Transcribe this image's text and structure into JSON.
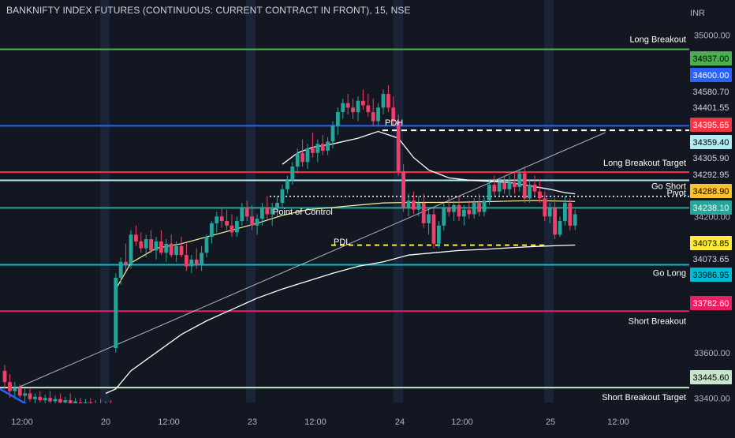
{
  "header": {
    "title": "BANKNIFTY INDEX FUTURES (CONTINUOUS: CURRENT CONTRACT IN FRONT), 15, NSE",
    "currency": "INR"
  },
  "chart_data": {
    "type": "candlestick",
    "symbol": "BANKNIFTY INDEX FUTURES (CONTINUOUS: CURRENT CONTRACT IN FRONT)",
    "interval": "15",
    "exchange": "NSE",
    "ylim": [
      33380,
      35050
    ],
    "y_ticks": [
      35000.0,
      34200.0,
      33600.0,
      33400.0
    ],
    "x_ticks": [
      "12:00",
      "20",
      "12:00",
      "23",
      "12:00",
      "24",
      "12:00",
      "25",
      "12:00"
    ],
    "levels": [
      {
        "name": "Long Breakout",
        "value": 34937.0,
        "color": "#4caf50",
        "style": "solid"
      },
      {
        "name": "",
        "value": 34600.0,
        "color": "#2962ff",
        "style": "solid"
      },
      {
        "name": "",
        "value": 34580.7,
        "color": "#ffffff",
        "style": "plain"
      },
      {
        "name": "",
        "value": 34401.55,
        "color": "#ffffff",
        "style": "plain"
      },
      {
        "name": "Long Breakout Target",
        "value": 34395.65,
        "color": "#f23645",
        "style": "solid"
      },
      {
        "name": "",
        "value": 34359.4,
        "color": "#b2ebf2",
        "style": "solid"
      },
      {
        "name": "",
        "value": 34305.9,
        "color": "#ffffff",
        "style": "plain"
      },
      {
        "name": "Go Short",
        "value": 34292.95,
        "color": "#ffffff",
        "style": "plain"
      },
      {
        "name": "Pivot",
        "value": 34288.9,
        "color": "#fbc02d",
        "style": "dotted"
      },
      {
        "name": "",
        "value": 34238.1,
        "color": "#26a69a",
        "style": "solid"
      },
      {
        "name": "",
        "value": 34073.85,
        "color": "#ffeb3b",
        "style": "dashed"
      },
      {
        "name": "",
        "value": 34073.65,
        "color": "#ffffff",
        "style": "plain"
      },
      {
        "name": "Go Long",
        "value": 33986.95,
        "color": "#00bcd4",
        "style": "solid"
      },
      {
        "name": "Short Breakout",
        "value": 33782.6,
        "color": "#e91e63",
        "style": "solid"
      },
      {
        "name": "Short Breakout Target",
        "value": 33445.6,
        "color": "#c8e6c9",
        "style": "solid"
      }
    ],
    "annotations": [
      {
        "text": "PDH",
        "value": 34580
      },
      {
        "text": "PDL",
        "value": 34055
      },
      {
        "text": "Point of Control",
        "value": 34250
      }
    ],
    "candles": [
      {
        "t": 0,
        "o": 33520,
        "h": 33545,
        "l": 33440,
        "c": 33470
      },
      {
        "t": 1,
        "o": 33470,
        "h": 33505,
        "l": 33400,
        "c": 33430
      },
      {
        "t": 2,
        "o": 33430,
        "h": 33470,
        "l": 33395,
        "c": 33445
      },
      {
        "t": 3,
        "o": 33445,
        "h": 33460,
        "l": 33400,
        "c": 33410
      },
      {
        "t": 4,
        "o": 33410,
        "h": 33440,
        "l": 33360,
        "c": 33420
      },
      {
        "t": 5,
        "o": 33420,
        "h": 33445,
        "l": 33385,
        "c": 33395
      },
      {
        "t": 6,
        "o": 33395,
        "h": 33420,
        "l": 33360,
        "c": 33405
      },
      {
        "t": 7,
        "o": 33405,
        "h": 33430,
        "l": 33380,
        "c": 33390
      },
      {
        "t": 8,
        "o": 33390,
        "h": 33415,
        "l": 33360,
        "c": 33400
      },
      {
        "t": 9,
        "o": 33400,
        "h": 33430,
        "l": 33370,
        "c": 33385
      },
      {
        "t": 10,
        "o": 33385,
        "h": 33410,
        "l": 33360,
        "c": 33395
      },
      {
        "t": 11,
        "o": 33395,
        "h": 33420,
        "l": 33370,
        "c": 33380
      },
      {
        "t": 12,
        "o": 33380,
        "h": 33405,
        "l": 33355,
        "c": 33390
      },
      {
        "t": 13,
        "o": 33390,
        "h": 33420,
        "l": 33365,
        "c": 33375
      },
      {
        "t": 14,
        "o": 33375,
        "h": 33400,
        "l": 33350,
        "c": 33385
      },
      {
        "t": 15,
        "o": 33380,
        "h": 33400,
        "l": 33355,
        "c": 33370
      },
      {
        "t": 16,
        "o": 33370,
        "h": 33395,
        "l": 33350,
        "c": 33380
      },
      {
        "t": 17,
        "o": 33380,
        "h": 33400,
        "l": 33355,
        "c": 33365
      },
      {
        "t": 18,
        "o": 33365,
        "h": 33390,
        "l": 33345,
        "c": 33375
      },
      {
        "t": 19,
        "o": 33375,
        "h": 33395,
        "l": 33350,
        "c": 33360
      },
      {
        "t": 20,
        "o": 33360,
        "h": 33385,
        "l": 33345,
        "c": 33370
      },
      {
        "t": 21,
        "o": 33370,
        "h": 33390,
        "l": 33350,
        "c": 33360
      },
      {
        "t": 22,
        "o": 33620,
        "h": 33950,
        "l": 33600,
        "c": 33930
      },
      {
        "t": 23,
        "o": 33930,
        "h": 34020,
        "l": 33900,
        "c": 34000
      },
      {
        "t": 24,
        "o": 34000,
        "h": 34080,
        "l": 33960,
        "c": 33990
      },
      {
        "t": 25,
        "o": 33990,
        "h": 34140,
        "l": 33970,
        "c": 34120
      },
      {
        "t": 26,
        "o": 34120,
        "h": 34160,
        "l": 34070,
        "c": 34090
      },
      {
        "t": 27,
        "o": 34090,
        "h": 34130,
        "l": 34040,
        "c": 34060
      },
      {
        "t": 28,
        "o": 34060,
        "h": 34120,
        "l": 34020,
        "c": 34100
      },
      {
        "t": 29,
        "o": 34100,
        "h": 34140,
        "l": 34040,
        "c": 34050
      },
      {
        "t": 30,
        "o": 34050,
        "h": 34110,
        "l": 34010,
        "c": 34090
      },
      {
        "t": 31,
        "o": 34090,
        "h": 34140,
        "l": 34030,
        "c": 34040
      },
      {
        "t": 32,
        "o": 34040,
        "h": 34100,
        "l": 34000,
        "c": 34080
      },
      {
        "t": 33,
        "o": 34080,
        "h": 34120,
        "l": 34020,
        "c": 34030
      },
      {
        "t": 34,
        "o": 34030,
        "h": 34090,
        "l": 34000,
        "c": 34070
      },
      {
        "t": 35,
        "o": 34070,
        "h": 34110,
        "l": 34020,
        "c": 34030
      },
      {
        "t": 36,
        "o": 34030,
        "h": 34080,
        "l": 33960,
        "c": 33980
      },
      {
        "t": 37,
        "o": 33980,
        "h": 34030,
        "l": 33950,
        "c": 34010
      },
      {
        "t": 38,
        "o": 34010,
        "h": 34060,
        "l": 33970,
        "c": 33990
      },
      {
        "t": 39,
        "o": 33990,
        "h": 34070,
        "l": 33960,
        "c": 34040
      },
      {
        "t": 40,
        "o": 34040,
        "h": 34120,
        "l": 34020,
        "c": 34110
      },
      {
        "t": 41,
        "o": 34110,
        "h": 34180,
        "l": 34080,
        "c": 34170
      },
      {
        "t": 42,
        "o": 34170,
        "h": 34220,
        "l": 34130,
        "c": 34200
      },
      {
        "t": 43,
        "o": 34200,
        "h": 34240,
        "l": 34150,
        "c": 34180
      },
      {
        "t": 44,
        "o": 34180,
        "h": 34230,
        "l": 34140,
        "c": 34160
      },
      {
        "t": 45,
        "o": 34160,
        "h": 34210,
        "l": 34110,
        "c": 34130
      },
      {
        "t": 46,
        "o": 34130,
        "h": 34200,
        "l": 34110,
        "c": 34180
      },
      {
        "t": 47,
        "o": 34180,
        "h": 34260,
        "l": 34160,
        "c": 34240
      },
      {
        "t": 48,
        "o": 34240,
        "h": 34270,
        "l": 34180,
        "c": 34200
      },
      {
        "t": 49,
        "o": 34200,
        "h": 34250,
        "l": 34140,
        "c": 34160
      },
      {
        "t": 50,
        "o": 34160,
        "h": 34210,
        "l": 34120,
        "c": 34190
      },
      {
        "t": 51,
        "o": 34190,
        "h": 34260,
        "l": 34160,
        "c": 34240
      },
      {
        "t": 52,
        "o": 34240,
        "h": 34290,
        "l": 34190,
        "c": 34210
      },
      {
        "t": 53,
        "o": 34210,
        "h": 34260,
        "l": 34160,
        "c": 34240
      },
      {
        "t": 54,
        "o": 34240,
        "h": 34290,
        "l": 34200,
        "c": 34260
      },
      {
        "t": 55,
        "o": 34260,
        "h": 34340,
        "l": 34240,
        "c": 34320
      },
      {
        "t": 56,
        "o": 34320,
        "h": 34380,
        "l": 34300,
        "c": 34360
      },
      {
        "t": 57,
        "o": 34360,
        "h": 34440,
        "l": 34340,
        "c": 34420
      },
      {
        "t": 58,
        "o": 34420,
        "h": 34500,
        "l": 34390,
        "c": 34480
      },
      {
        "t": 59,
        "o": 34480,
        "h": 34540,
        "l": 34420,
        "c": 34440
      },
      {
        "t": 60,
        "o": 34440,
        "h": 34520,
        "l": 34410,
        "c": 34500
      },
      {
        "t": 61,
        "o": 34500,
        "h": 34570,
        "l": 34460,
        "c": 34480
      },
      {
        "t": 62,
        "o": 34480,
        "h": 34540,
        "l": 34440,
        "c": 34520
      },
      {
        "t": 63,
        "o": 34520,
        "h": 34560,
        "l": 34470,
        "c": 34490
      },
      {
        "t": 64,
        "o": 34490,
        "h": 34550,
        "l": 34470,
        "c": 34530
      },
      {
        "t": 65,
        "o": 34530,
        "h": 34620,
        "l": 34500,
        "c": 34600
      },
      {
        "t": 66,
        "o": 34600,
        "h": 34680,
        "l": 34560,
        "c": 34660
      },
      {
        "t": 67,
        "o": 34660,
        "h": 34720,
        "l": 34630,
        "c": 34700
      },
      {
        "t": 68,
        "o": 34700,
        "h": 34740,
        "l": 34650,
        "c": 34680
      },
      {
        "t": 69,
        "o": 34680,
        "h": 34720,
        "l": 34630,
        "c": 34660
      },
      {
        "t": 70,
        "o": 34660,
        "h": 34730,
        "l": 34620,
        "c": 34710
      },
      {
        "t": 71,
        "o": 34710,
        "h": 34760,
        "l": 34670,
        "c": 34690
      },
      {
        "t": 72,
        "o": 34690,
        "h": 34740,
        "l": 34640,
        "c": 34660
      },
      {
        "t": 73,
        "o": 34660,
        "h": 34720,
        "l": 34600,
        "c": 34620
      },
      {
        "t": 74,
        "o": 34620,
        "h": 34700,
        "l": 34600,
        "c": 34680
      },
      {
        "t": 75,
        "o": 34680,
        "h": 34760,
        "l": 34650,
        "c": 34740
      },
      {
        "t": 76,
        "o": 34740,
        "h": 34780,
        "l": 34660,
        "c": 34680
      },
      {
        "t": 77,
        "o": 34680,
        "h": 34730,
        "l": 34600,
        "c": 34620
      },
      {
        "t": 78,
        "o": 34620,
        "h": 34650,
        "l": 34380,
        "c": 34400
      },
      {
        "t": 79,
        "o": 34400,
        "h": 34430,
        "l": 34220,
        "c": 34240
      },
      {
        "t": 80,
        "o": 34240,
        "h": 34300,
        "l": 34200,
        "c": 34270
      },
      {
        "t": 81,
        "o": 34270,
        "h": 34310,
        "l": 34210,
        "c": 34230
      },
      {
        "t": 82,
        "o": 34230,
        "h": 34290,
        "l": 34200,
        "c": 34260
      },
      {
        "t": 83,
        "o": 34260,
        "h": 34300,
        "l": 34150,
        "c": 34170
      },
      {
        "t": 84,
        "o": 34170,
        "h": 34230,
        "l": 34120,
        "c": 34210
      },
      {
        "t": 85,
        "o": 34210,
        "h": 34240,
        "l": 34060,
        "c": 34080
      },
      {
        "t": 86,
        "o": 34080,
        "h": 34180,
        "l": 34060,
        "c": 34160
      },
      {
        "t": 87,
        "o": 34160,
        "h": 34260,
        "l": 34140,
        "c": 34240
      },
      {
        "t": 88,
        "o": 34240,
        "h": 34290,
        "l": 34200,
        "c": 34220
      },
      {
        "t": 89,
        "o": 34220,
        "h": 34270,
        "l": 34180,
        "c": 34250
      },
      {
        "t": 90,
        "o": 34250,
        "h": 34290,
        "l": 34180,
        "c": 34200
      },
      {
        "t": 91,
        "o": 34200,
        "h": 34250,
        "l": 34160,
        "c": 34230
      },
      {
        "t": 92,
        "o": 34230,
        "h": 34270,
        "l": 34190,
        "c": 34210
      },
      {
        "t": 93,
        "o": 34210,
        "h": 34280,
        "l": 34190,
        "c": 34260
      },
      {
        "t": 94,
        "o": 34260,
        "h": 34300,
        "l": 34200,
        "c": 34220
      },
      {
        "t": 95,
        "o": 34220,
        "h": 34290,
        "l": 34200,
        "c": 34270
      },
      {
        "t": 96,
        "o": 34270,
        "h": 34360,
        "l": 34250,
        "c": 34340
      },
      {
        "t": 97,
        "o": 34340,
        "h": 34380,
        "l": 34290,
        "c": 34310
      },
      {
        "t": 98,
        "o": 34310,
        "h": 34370,
        "l": 34290,
        "c": 34350
      },
      {
        "t": 99,
        "o": 34350,
        "h": 34380,
        "l": 34300,
        "c": 34320
      },
      {
        "t": 100,
        "o": 34320,
        "h": 34380,
        "l": 34290,
        "c": 34350
      },
      {
        "t": 101,
        "o": 34350,
        "h": 34400,
        "l": 34300,
        "c": 34330
      },
      {
        "t": 102,
        "o": 34330,
        "h": 34410,
        "l": 34310,
        "c": 34390
      },
      {
        "t": 103,
        "o": 34390,
        "h": 34420,
        "l": 34260,
        "c": 34280
      },
      {
        "t": 104,
        "o": 34280,
        "h": 34360,
        "l": 34260,
        "c": 34340
      },
      {
        "t": 105,
        "o": 34340,
        "h": 34380,
        "l": 34290,
        "c": 34310
      },
      {
        "t": 106,
        "o": 34310,
        "h": 34360,
        "l": 34260,
        "c": 34280
      },
      {
        "t": 107,
        "o": 34280,
        "h": 34310,
        "l": 34180,
        "c": 34200
      },
      {
        "t": 108,
        "o": 34200,
        "h": 34260,
        "l": 34170,
        "c": 34240
      },
      {
        "t": 109,
        "o": 34240,
        "h": 34280,
        "l": 34100,
        "c": 34120
      },
      {
        "t": 110,
        "o": 34120,
        "h": 34200,
        "l": 34110,
        "c": 34180
      },
      {
        "t": 111,
        "o": 34180,
        "h": 34290,
        "l": 34160,
        "c": 34260
      },
      {
        "t": 112,
        "o": 34260,
        "h": 34280,
        "l": 34140,
        "c": 34160
      },
      {
        "t": 113,
        "o": 34160,
        "h": 34230,
        "l": 34140,
        "c": 34210
      }
    ],
    "vwap_line": [
      [
        22,
        33880
      ],
      [
        25,
        33995
      ],
      [
        30,
        34060
      ],
      [
        35,
        34080
      ],
      [
        40,
        34110
      ],
      [
        45,
        34140
      ],
      [
        50,
        34170
      ],
      [
        55,
        34205
      ],
      [
        60,
        34230
      ],
      [
        65,
        34240
      ],
      [
        70,
        34250
      ],
      [
        75,
        34260
      ],
      [
        80,
        34262
      ],
      [
        85,
        34262
      ],
      [
        90,
        34263
      ],
      [
        95,
        34265
      ],
      [
        100,
        34268
      ],
      [
        105,
        34270
      ],
      [
        110,
        34268
      ],
      [
        113,
        34266
      ]
    ],
    "upper_band": [
      [
        55,
        34430
      ],
      [
        58,
        34480
      ],
      [
        61,
        34505
      ],
      [
        65,
        34520
      ],
      [
        70,
        34545
      ],
      [
        74,
        34575
      ],
      [
        78,
        34545
      ],
      [
        81,
        34460
      ],
      [
        84,
        34405
      ],
      [
        88,
        34370
      ],
      [
        92,
        34360
      ],
      [
        96,
        34355
      ],
      [
        100,
        34350
      ],
      [
        104,
        34335
      ],
      [
        108,
        34320
      ],
      [
        111,
        34305
      ],
      [
        113,
        34300
      ]
    ],
    "lower_band": [
      [
        20,
        33420
      ],
      [
        22,
        33440
      ],
      [
        25,
        33520
      ],
      [
        30,
        33600
      ],
      [
        35,
        33680
      ],
      [
        40,
        33740
      ],
      [
        45,
        33790
      ],
      [
        50,
        33840
      ],
      [
        55,
        33880
      ],
      [
        60,
        33915
      ],
      [
        65,
        33950
      ],
      [
        70,
        33980
      ],
      [
        75,
        34000
      ],
      [
        80,
        34030
      ],
      [
        85,
        34040
      ],
      [
        90,
        34050
      ],
      [
        95,
        34055
      ],
      [
        100,
        34062
      ],
      [
        105,
        34068
      ],
      [
        110,
        34072
      ],
      [
        113,
        34074
      ]
    ],
    "trend_line": [
      [
        2,
        33440
      ],
      [
        119,
        34570
      ]
    ]
  }
}
